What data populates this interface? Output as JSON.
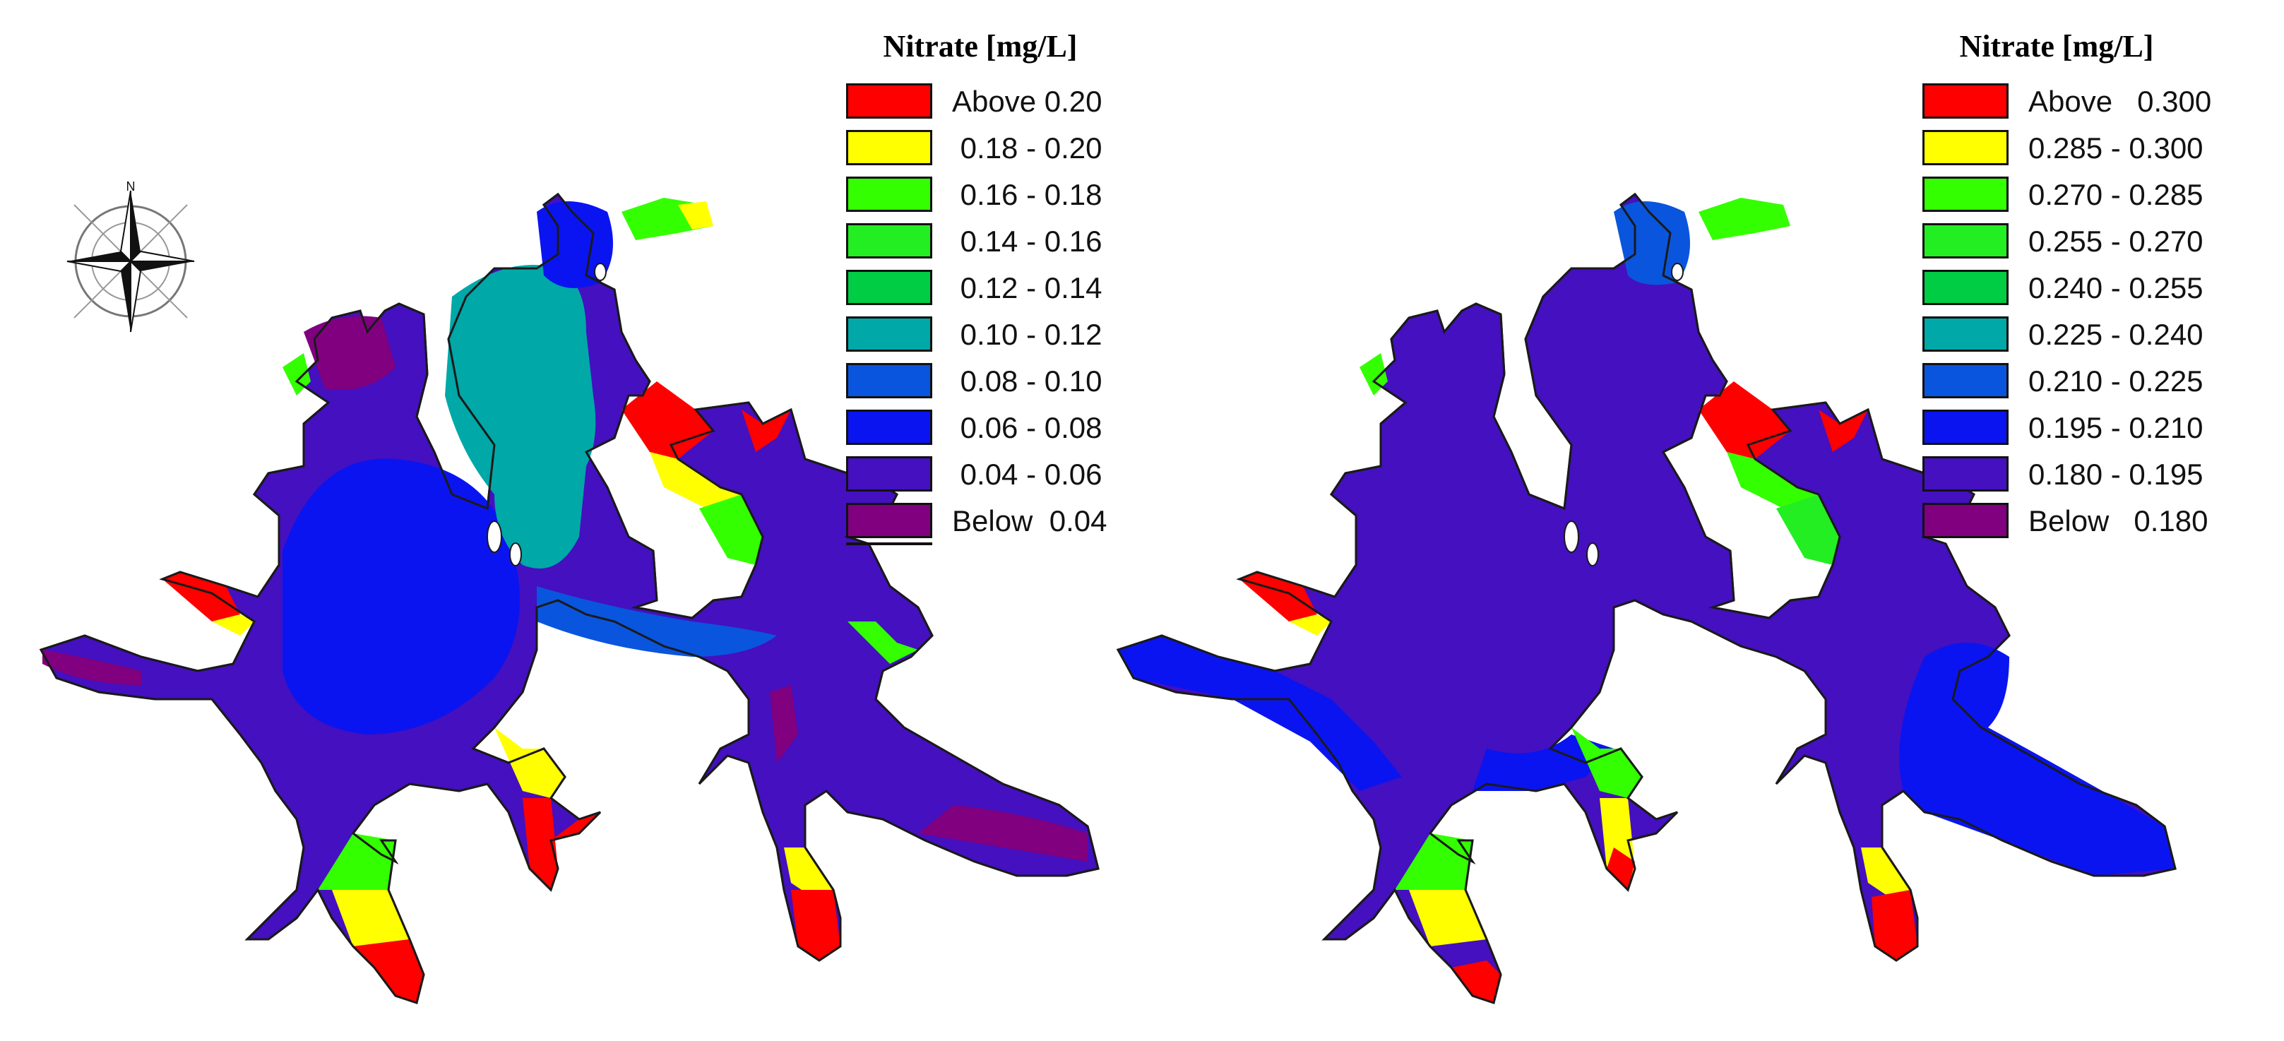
{
  "panels": [
    {
      "id": "left",
      "legend": {
        "title": "Nitrate [mg/L]",
        "items": [
          {
            "label": "Above 0.20",
            "color": "#ff0000"
          },
          {
            "label": " 0.18 - 0.20",
            "color": "#ffff00"
          },
          {
            "label": " 0.16 - 0.18",
            "color": "#33ff00"
          },
          {
            "label": " 0.14 - 0.16",
            "color": "#22ee22"
          },
          {
            "label": " 0.12 - 0.14",
            "color": "#00cc44"
          },
          {
            "label": " 0.10 - 0.12",
            "color": "#00a8a8"
          },
          {
            "label": " 0.08 - 0.10",
            "color": "#0a55dd"
          },
          {
            "label": " 0.06 - 0.08",
            "color": "#0a14f0"
          },
          {
            "label": " 0.04 - 0.06",
            "color": "#4410c0"
          },
          {
            "label": "Below  0.04",
            "color": "#800080"
          }
        ]
      }
    },
    {
      "id": "right",
      "legend": {
        "title": "Nitrate [mg/L]",
        "items": [
          {
            "label": "Above   0.300",
            "color": "#ff0000"
          },
          {
            "label": "0.285 - 0.300",
            "color": "#ffff00"
          },
          {
            "label": "0.270 - 0.285",
            "color": "#33ff00"
          },
          {
            "label": "0.255 - 0.270",
            "color": "#22ee22"
          },
          {
            "label": "0.240 - 0.255",
            "color": "#00cc44"
          },
          {
            "label": "0.225 - 0.240",
            "color": "#00a8a8"
          },
          {
            "label": "0.210 - 0.225",
            "color": "#0a55dd"
          },
          {
            "label": "0.195 - 0.210",
            "color": "#0a14f0"
          },
          {
            "label": "0.180 - 0.195",
            "color": "#4410c0"
          },
          {
            "label": "Below   0.180",
            "color": "#800080"
          }
        ]
      }
    }
  ],
  "compass": {
    "north_label": "N"
  }
}
